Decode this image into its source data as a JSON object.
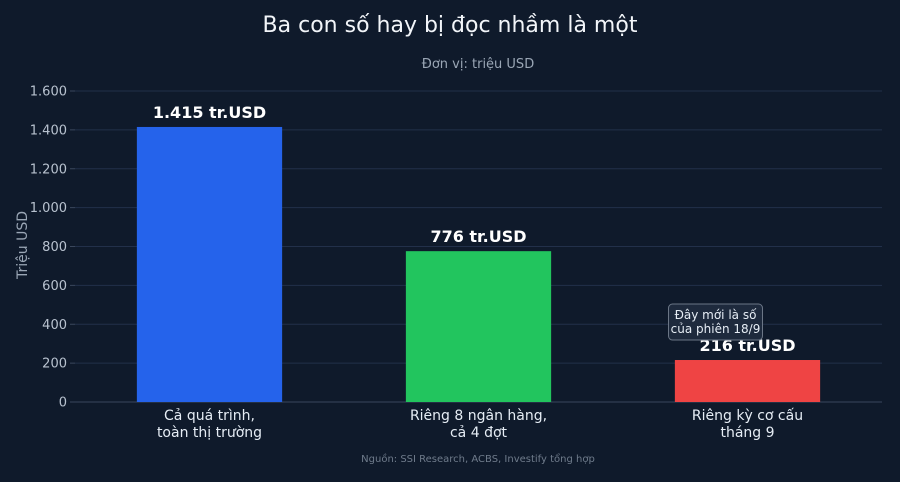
{
  "chart_data": {
    "type": "bar",
    "title": "Ba con số hay bị đọc nhầm là một",
    "subtitle": "Đơn vị: triệu USD",
    "ylabel": "Triệu USD",
    "xlabel": "",
    "ylim": [
      0,
      1600
    ],
    "yticks": [
      0,
      200,
      400,
      600,
      800,
      1000,
      1200,
      1400,
      1600
    ],
    "ytick_labels": [
      "0",
      "200",
      "400",
      "600",
      "800",
      "1.000",
      "1.200",
      "1.400",
      "1.600"
    ],
    "grid": true,
    "categories": [
      [
        "Cả quá trình,",
        "toàn thị trường"
      ],
      [
        "Riêng 8 ngân hàng,",
        "cả 4 đợt"
      ],
      [
        "Riêng kỳ cơ cấu",
        "tháng 9"
      ]
    ],
    "values": [
      1415,
      776,
      216
    ],
    "data_labels": [
      "1.415 tr.USD",
      "776 tr.USD",
      "216 tr.USD"
    ],
    "colors": [
      "#2563eb",
      "#22c55e",
      "#ef4444"
    ],
    "annotation": {
      "category_index": 2,
      "lines": [
        "Đây mới là số",
        "của phiên 18/9"
      ]
    },
    "source": "Nguồn: SSI Research, ACBS, Investify tổng hợp"
  }
}
